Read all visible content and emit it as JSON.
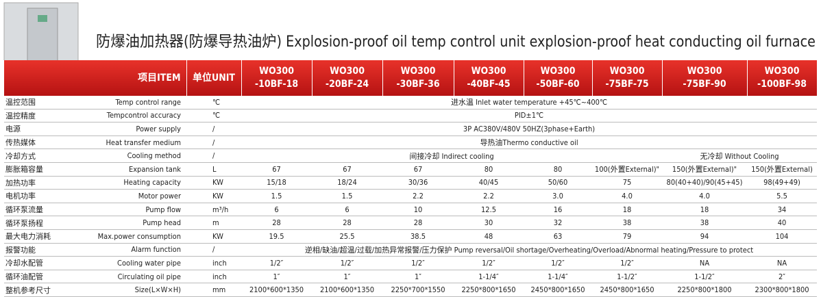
{
  "title": "防爆油加热器(防爆导热油炉) Explosion-proof oil temp control unit explosion-proof heat conducting oil furnace",
  "header": {
    "item": "项目ITEM",
    "unit": "单位UNIT",
    "models": [
      [
        "WO300",
        "-10BF-18"
      ],
      [
        "WO300",
        "-20BF-24"
      ],
      [
        "WO300",
        "-30BF-36"
      ],
      [
        "WO300",
        "-40BF-45"
      ],
      [
        "WO300",
        "-50BF-60"
      ],
      [
        "WO300",
        "-75BF-75"
      ],
      [
        "WO300",
        "-75BF-90"
      ],
      [
        "WO300",
        "-100BF-98"
      ]
    ]
  },
  "rows": [
    {
      "cn": "温控范围",
      "en": "Temp control range",
      "unit": "℃",
      "cells": [
        "进水温 Inlet water temperature +45℃~400℃"
      ]
    },
    {
      "cn": "温控精度",
      "en": "Tempcontrol accuracy",
      "unit": "℃",
      "cells": [
        "PID±1℃"
      ]
    },
    {
      "cn": "电源",
      "en": "Power supply",
      "unit": "/",
      "cells": [
        "3P AC380V/480V 50HZ(3phase+Earth)"
      ]
    },
    {
      "cn": "传热媒体",
      "en": "Heat transfer medium",
      "unit": "/",
      "cells": [
        "导热油Thermo conductive oil"
      ]
    },
    {
      "cn": "冷却方式",
      "en": "Cooling method",
      "unit": "/",
      "cells": [
        "间接冷却 Indirect cooling",
        "无冷却 Without Cooling"
      ]
    },
    {
      "cn": "膨胀箱容量",
      "en": "Expansion tank",
      "unit": "L",
      "cells": [
        "67",
        "67",
        "67",
        "80",
        "80",
        "100(外置External)\"",
        "150(外置External)\"",
        "150(外置External)"
      ]
    },
    {
      "cn": "加热功率",
      "en": "Heating capacity",
      "unit": "KW",
      "cells": [
        "15/18",
        "18/24",
        "30/36",
        "40/45",
        "50/60",
        "75",
        "80(40+40)/90(45+45)",
        "98(49+49)"
      ]
    },
    {
      "cn": "电机功率",
      "en": "Motor power",
      "unit": "KW",
      "cells": [
        "1.5",
        "1.5",
        "2.2",
        "2.2",
        "3.0",
        "4.0",
        "4.0",
        "5.5"
      ]
    },
    {
      "cn": "循环泵流量",
      "en": "Pump flow",
      "unit": "m³/h",
      "cells": [
        "6",
        "6",
        "10",
        "12.5",
        "16",
        "18",
        "18",
        "34"
      ]
    },
    {
      "cn": "循环泵扬程",
      "en": "Pump head",
      "unit": "m",
      "cells": [
        "28",
        "28",
        "28",
        "30",
        "32",
        "38",
        "38",
        "40"
      ]
    },
    {
      "cn": "最大电力消耗",
      "en": "Max.power consumption",
      "unit": "KW",
      "cells": [
        "19.5",
        "25.5",
        "38.5",
        "48",
        "63",
        "79",
        "94",
        "104"
      ]
    },
    {
      "cn": "报警功能",
      "en": "Alarm function",
      "unit": "/",
      "cells": [
        "逆相/缺油/超温/过载/加热异常报警/压力保护 Pump reversal/Oil shortage/Overheating/Overload/Abnormal heating/Pressure to protect"
      ]
    },
    {
      "cn": "冷却水配管",
      "en": "Cooling water pipe",
      "unit": "inch",
      "cells": [
        "1/2″",
        "1/2″",
        "1/2″",
        "1/2″",
        "1/2″",
        "1/2″",
        "NA",
        "NA"
      ]
    },
    {
      "cn": "循环油配管",
      "en": "Circulating oil pipe",
      "unit": "inch",
      "cells": [
        "1″",
        "1″",
        "1″",
        "1-1/4″",
        "1-1/4″",
        "1-1/2″",
        "1-1/2″",
        "2″"
      ]
    },
    {
      "cn": "整机参考尺寸",
      "en": "Size(L×W×H)",
      "unit": "mm",
      "cells": [
        "2100*600*1350",
        "2100*600*1350",
        "2250*700*1550",
        "2250*800*1650",
        "2450*800*1650",
        "2450*800*1650",
        "2250*800*1800",
        "2300*800*1800"
      ]
    }
  ]
}
